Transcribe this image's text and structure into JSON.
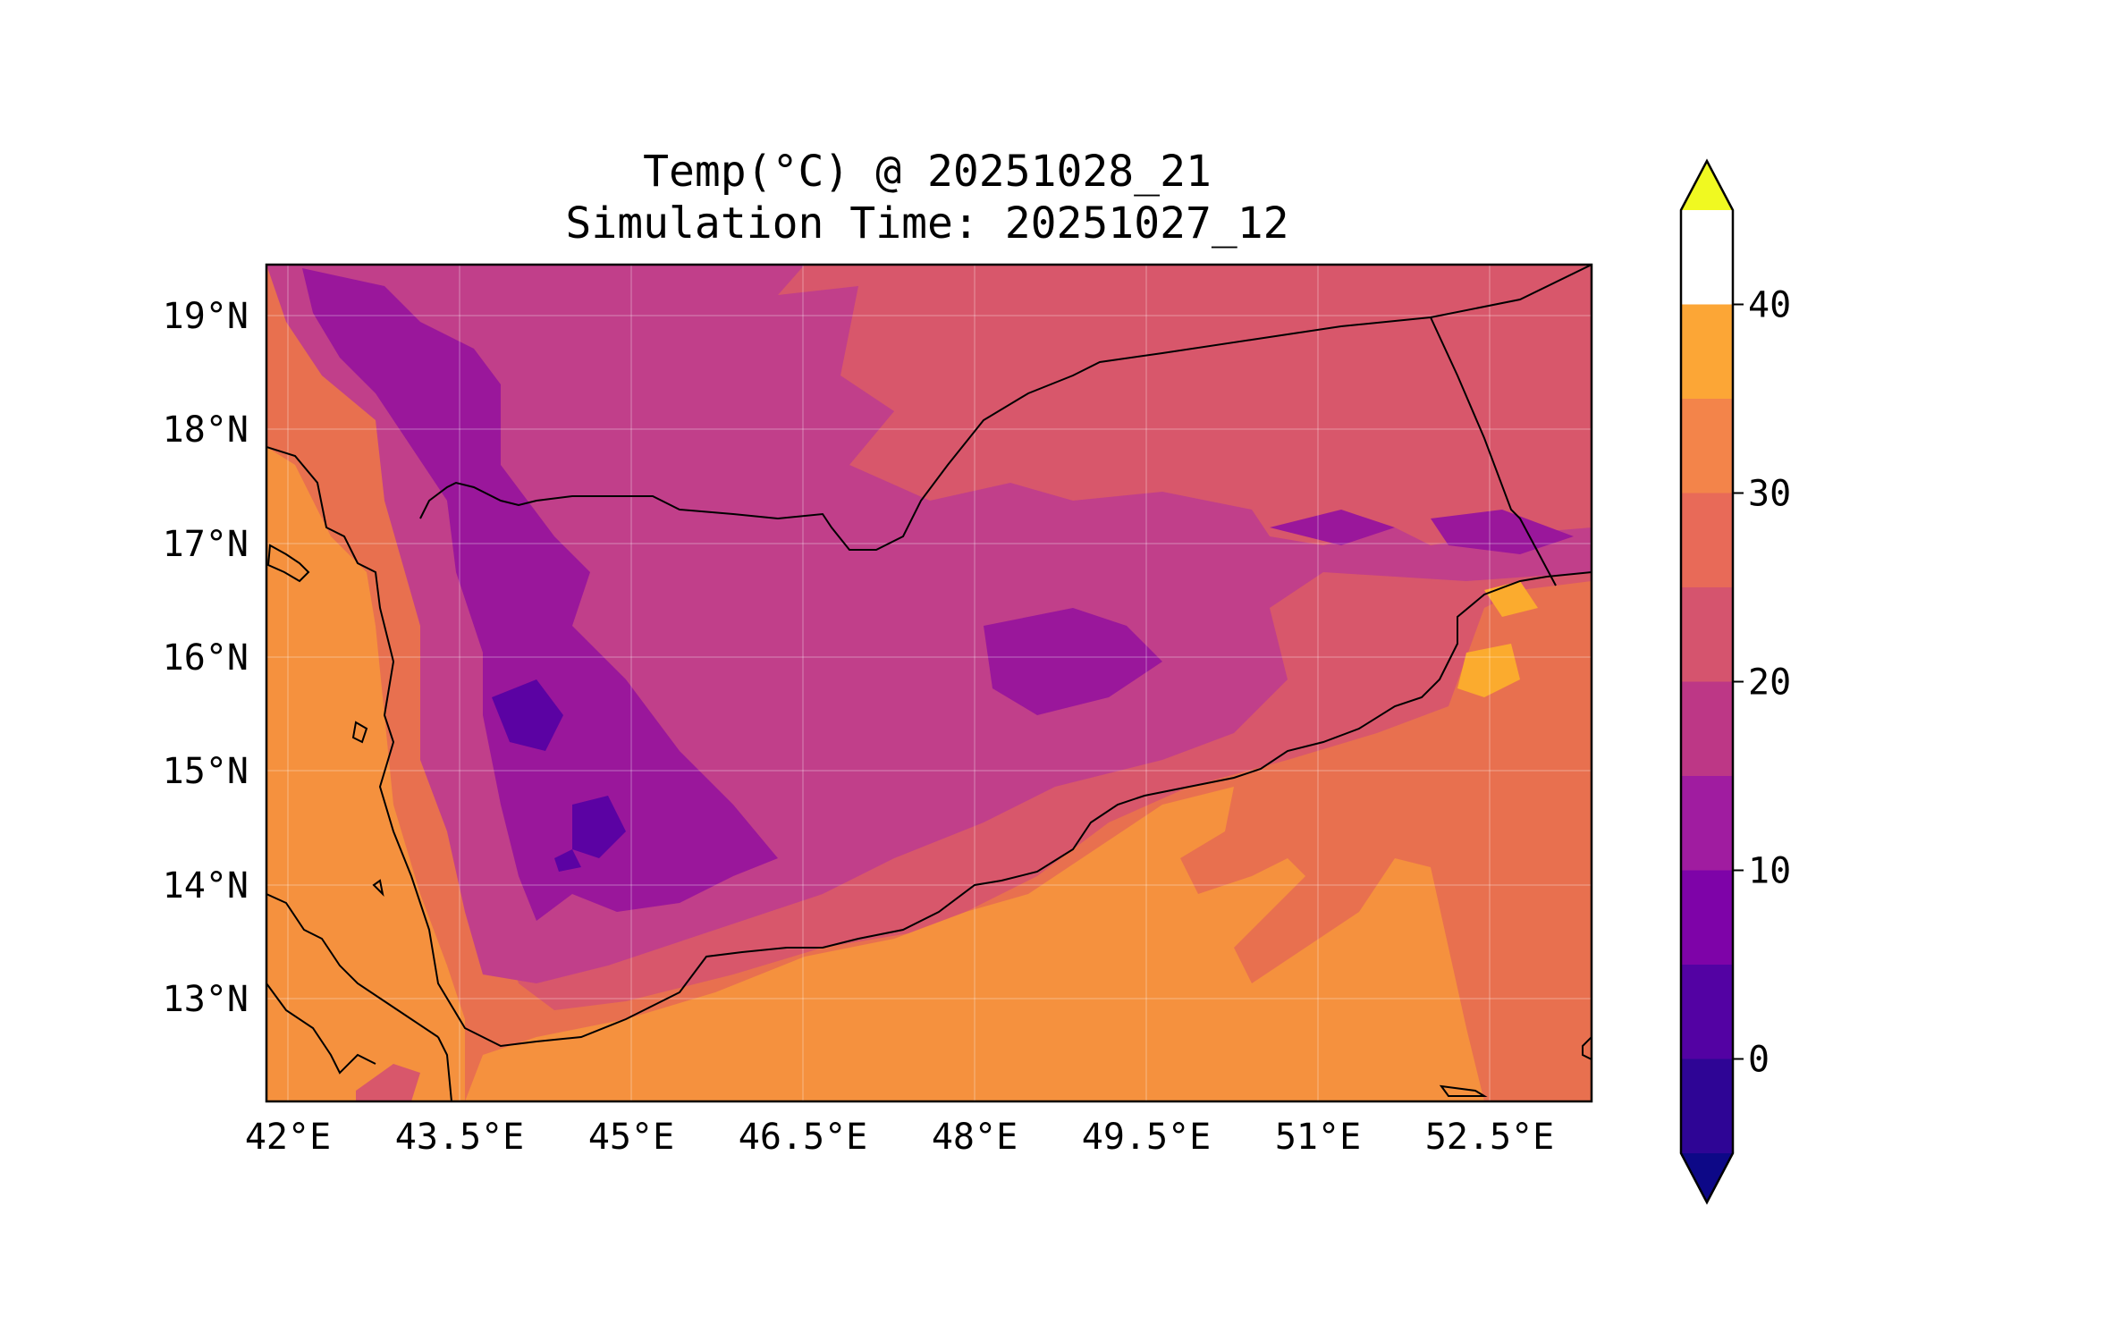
{
  "title": {
    "line1": "Temp(°C) @ 20251028_21",
    "line2": "Simulation Time: 20251027_12"
  },
  "map": {
    "region_colors": {
      "land_cool_2": "#5b02a3",
      "land_cool_1": "#9a179b",
      "highland": "#c13f8a",
      "plateau": "#d8576b",
      "lowland": "#e8704f",
      "sea": "#f5913e",
      "warm_sea": "#fbab2e"
    }
  },
  "axes": {
    "x_ticks": [
      "42°E",
      "43.5°E",
      "45°E",
      "46.5°E",
      "48°E",
      "49.5°E",
      "51°E",
      "52.5°E"
    ],
    "y_ticks": [
      "19°N",
      "18°N",
      "17°N",
      "16°N",
      "15°N",
      "14°N",
      "13°N"
    ]
  },
  "colorbar": {
    "ticks": [
      "0",
      "10",
      "20",
      "30",
      "40"
    ],
    "levels": [
      {
        "color": "#0d0887"
      },
      {
        "color": "#2e0595"
      },
      {
        "color": "#5302a3"
      },
      {
        "color": "#7e03a8"
      },
      {
        "color": "#a01ca0"
      },
      {
        "color": "#bd3786"
      },
      {
        "color": "#d5546e"
      },
      {
        "color": "#e86a58"
      },
      {
        "color": "#f3844a"
      },
      {
        "color": "#fca636"
      },
      {
        "color": "#f0f921"
      }
    ],
    "range": [
      -5,
      45
    ]
  }
}
